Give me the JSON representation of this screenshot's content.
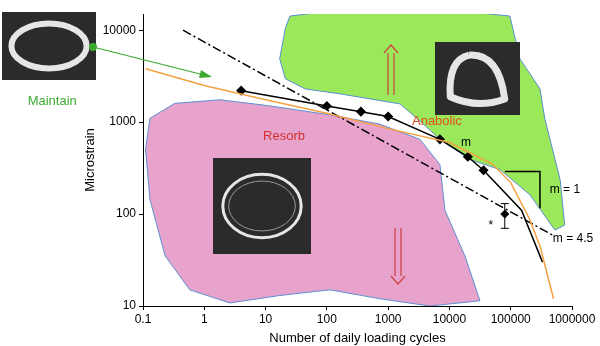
{
  "chart_data": {
    "type": "scatter",
    "x_label": "Number of daily loading cycles",
    "y_label": "Microstrain",
    "log": true,
    "grid": false,
    "xlim": [
      0.1,
      1000000
    ],
    "ylim": [
      10,
      15000
    ],
    "xticks": [
      0.1,
      1,
      10,
      100,
      1000,
      10000,
      100000,
      1000000
    ],
    "yticks": [
      10,
      100,
      1000,
      10000
    ],
    "regions": [
      {
        "color": "#9be85a",
        "x": [
          25,
          164,
          3300,
          21600,
          97000,
          141000,
          300000,
          361000,
          640000,
          760000,
          525000,
          206000,
          66700,
          21600,
          7000,
          3300,
          1560,
          505,
          164,
          44,
          21,
          17,
          21
        ],
        "y": [
          14250,
          16600,
          16600,
          15800,
          14250,
          4900,
          2300,
          1080,
          237,
          76,
          67,
          162,
          305,
          392,
          650,
          1030,
          1580,
          1790,
          2030,
          2300,
          2970,
          4900,
          10500
        ]
      },
      {
        "color": "#e8a3cd",
        "x": [
          0.13,
          0.33,
          1.8,
          12,
          112,
          735,
          3300,
          7000,
          8450,
          17900,
          31500,
          4800,
          735,
          112,
          17,
          2.6,
          0.58,
          0.23,
          0.13,
          0.11
        ],
        "y": [
          1100,
          1600,
          1750,
          1500,
          1200,
          950,
          650,
          345,
          110,
          35,
          11.4,
          10,
          12,
          15,
          13,
          10.8,
          15,
          35,
          143,
          505
        ]
      }
    ],
    "series": [
      {
        "type": "line",
        "color": "#f5a142",
        "line_style": "solid",
        "marker": "none",
        "x": [
          0.11,
          1,
          10,
          100,
          1000,
          10000,
          50000,
          100000,
          200000,
          300000,
          500000
        ],
        "values": [
          3800,
          2500,
          1750,
          1250,
          850,
          600,
          350,
          220,
          90,
          45,
          12
        ]
      },
      {
        "type": "line",
        "color": "#000000",
        "line_style": "dashdot",
        "marker": "none",
        "x": [
          0.45,
          530000
        ],
        "values": [
          10000,
          57
        ]
      },
      {
        "type": "line",
        "color": "#000000",
        "line_style": "solid",
        "marker": "diamond",
        "x": [
          4,
          100,
          360,
          1000,
          7000,
          20000,
          36000
        ],
        "values": [
          2200,
          1500,
          1300,
          1150,
          650,
          420,
          300
        ]
      },
      {
        "type": "line",
        "color": "#000000",
        "line_style": "solid",
        "marker": "none",
        "x": [
          36000,
          150000,
          330000
        ],
        "values": [
          300,
          110,
          30
        ]
      },
      {
        "type": "scatter",
        "color": "#000000",
        "marker": "diamond",
        "x": [
          80000
        ],
        "values": [
          100
        ],
        "errors": [
          30
        ]
      },
      {
        "type": "line",
        "color": "#000000",
        "line_style": "solid",
        "marker": "none",
        "x": [
          80000,
          300000,
          300000
        ],
        "values": [
          290,
          290,
          116
        ]
      }
    ],
    "annotations": [
      {
        "text": "Anabolic",
        "x": 6250,
        "y": 1030,
        "color": "#e04e1c"
      },
      {
        "text": "Resorb",
        "x": 20,
        "y": 700,
        "color": "#d03030"
      },
      {
        "text": "Maintain",
        "x": 0.0033,
        "y": 1660,
        "color": "#3caa30"
      },
      {
        "text": "m",
        "x": 18600,
        "y": 600,
        "color": "#000000"
      },
      {
        "text": "m = 4.5",
        "x": 1040000,
        "y": 54,
        "color": "#000000"
      },
      {
        "text": "m = 1",
        "x": 766000,
        "y": 184,
        "color": "#000000"
      },
      {
        "text": "*",
        "x": 47500,
        "y": 74,
        "color": "#000000"
      }
    ]
  }
}
